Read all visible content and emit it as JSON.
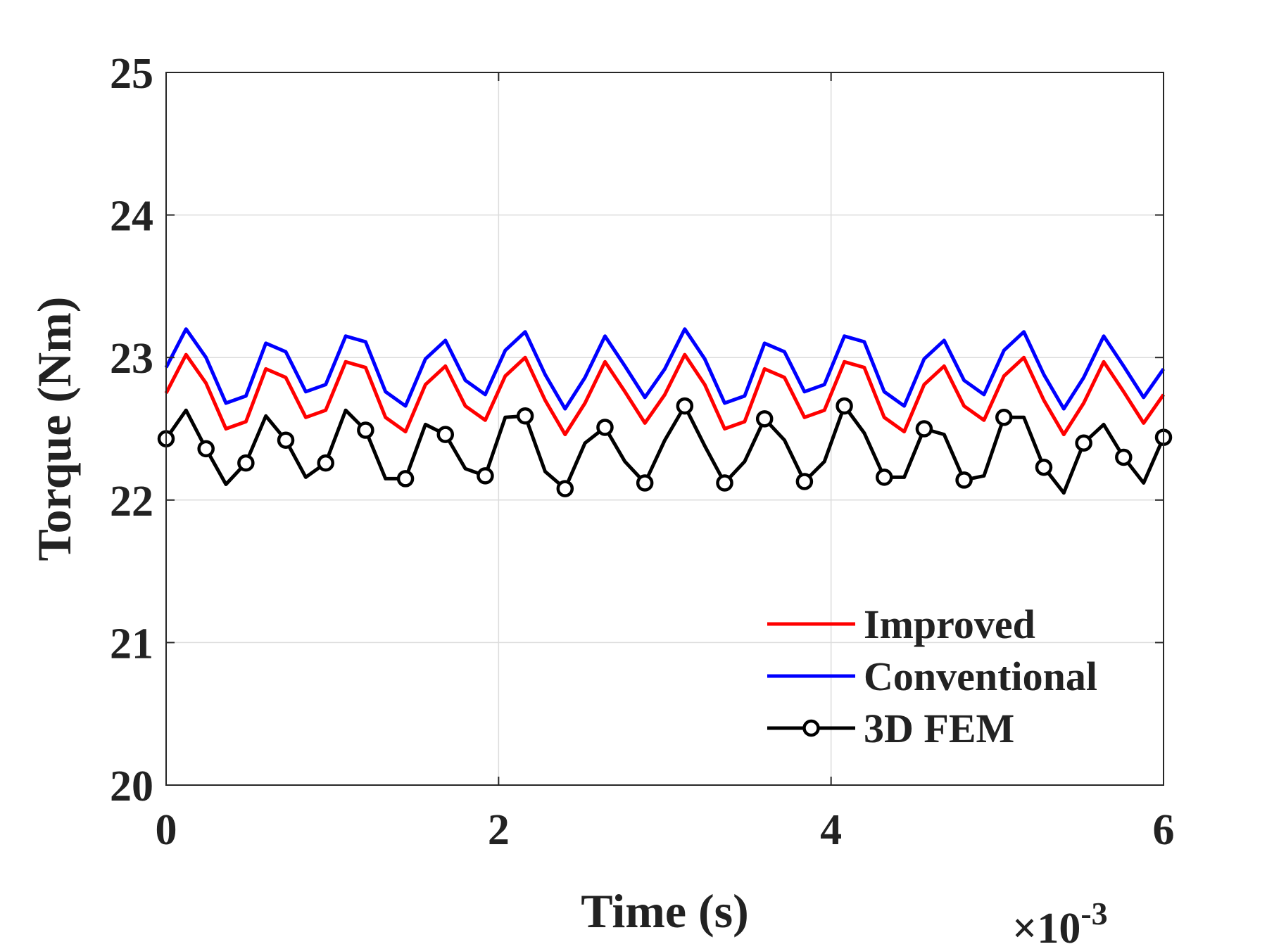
{
  "chart_data": {
    "type": "line",
    "title": "",
    "xlabel": "Time (s)",
    "ylabel": "Torque (Nm)",
    "x_exponent_label": {
      "base": "×10",
      "exponent": "-3"
    },
    "xlim": [
      0,
      6
    ],
    "ylim": [
      20,
      25
    ],
    "xticks": [
      "0",
      "2",
      "4",
      "6"
    ],
    "yticks": [
      "20",
      "21",
      "22",
      "23",
      "24",
      "25"
    ],
    "grid": true,
    "legend_position": "bottom-right",
    "series": [
      {
        "name": "Improved",
        "color": "#ff0000",
        "marker": "none",
        "x": [
          0,
          0.12,
          0.24,
          0.36,
          0.48,
          0.6,
          0.72,
          0.84,
          0.96,
          1.08,
          1.2,
          1.32,
          1.44,
          1.56,
          1.68,
          1.8,
          1.92,
          2.04,
          2.16,
          2.28,
          2.4,
          2.52,
          2.64,
          2.76,
          2.88,
          3.0,
          3.12,
          3.24,
          3.36,
          3.48,
          3.6,
          3.72,
          3.84,
          3.96,
          4.08,
          4.2,
          4.32,
          4.44,
          4.56,
          4.68,
          4.8,
          4.92,
          5.04,
          5.16,
          5.28,
          5.4,
          5.52,
          5.64,
          5.76,
          5.88,
          6.0
        ],
        "y": [
          22.75,
          23.02,
          22.82,
          22.5,
          22.55,
          22.92,
          22.86,
          22.58,
          22.63,
          22.97,
          22.93,
          22.58,
          22.48,
          22.81,
          22.94,
          22.66,
          22.56,
          22.87,
          23.0,
          22.7,
          22.46,
          22.68,
          22.97,
          22.76,
          22.54,
          22.74,
          23.02,
          22.81,
          22.5,
          22.55,
          22.92,
          22.86,
          22.58,
          22.63,
          22.97,
          22.93,
          22.58,
          22.48,
          22.81,
          22.94,
          22.66,
          22.56,
          22.87,
          23.0,
          22.7,
          22.46,
          22.68,
          22.97,
          22.76,
          22.54,
          22.74
        ]
      },
      {
        "name": "Conventional",
        "color": "#0000ff",
        "marker": "none",
        "x": [
          0,
          0.12,
          0.24,
          0.36,
          0.48,
          0.6,
          0.72,
          0.84,
          0.96,
          1.08,
          1.2,
          1.32,
          1.44,
          1.56,
          1.68,
          1.8,
          1.92,
          2.04,
          2.16,
          2.28,
          2.4,
          2.52,
          2.64,
          2.76,
          2.88,
          3.0,
          3.12,
          3.24,
          3.36,
          3.48,
          3.6,
          3.72,
          3.84,
          3.96,
          4.08,
          4.2,
          4.32,
          4.44,
          4.56,
          4.68,
          4.8,
          4.92,
          5.04,
          5.16,
          5.28,
          5.4,
          5.52,
          5.64,
          5.76,
          5.88,
          6.0
        ],
        "y": [
          22.93,
          23.2,
          23.0,
          22.68,
          22.73,
          23.1,
          23.04,
          22.76,
          22.81,
          23.15,
          23.11,
          22.76,
          22.66,
          22.99,
          23.12,
          22.84,
          22.74,
          23.05,
          23.18,
          22.88,
          22.64,
          22.86,
          23.15,
          22.94,
          22.72,
          22.92,
          23.2,
          22.99,
          22.68,
          22.73,
          23.1,
          23.04,
          22.76,
          22.81,
          23.15,
          23.11,
          22.76,
          22.66,
          22.99,
          23.12,
          22.84,
          22.74,
          23.05,
          23.18,
          22.88,
          22.64,
          22.86,
          23.15,
          22.94,
          22.72,
          22.92
        ]
      },
      {
        "name": "3D FEM",
        "color": "#000000",
        "marker": "circle",
        "x": [
          0,
          0.12,
          0.24,
          0.36,
          0.48,
          0.6,
          0.72,
          0.84,
          0.96,
          1.08,
          1.2,
          1.32,
          1.44,
          1.56,
          1.68,
          1.8,
          1.92,
          2.04,
          2.16,
          2.28,
          2.4,
          2.52,
          2.64,
          2.76,
          2.88,
          3.0,
          3.12,
          3.24,
          3.36,
          3.48,
          3.6,
          3.72,
          3.84,
          3.96,
          4.08,
          4.2,
          4.32,
          4.44,
          4.56,
          4.68,
          4.8,
          4.92,
          5.04,
          5.16,
          5.28,
          5.4,
          5.52,
          5.64,
          5.76,
          5.88,
          6.0
        ],
        "y": [
          22.43,
          22.63,
          22.36,
          22.11,
          22.26,
          22.59,
          22.42,
          22.16,
          22.26,
          22.63,
          22.49,
          22.15,
          22.15,
          22.53,
          22.46,
          22.22,
          22.17,
          22.58,
          22.59,
          22.2,
          22.08,
          22.4,
          22.51,
          22.27,
          22.12,
          22.42,
          22.66,
          22.38,
          22.12,
          22.27,
          22.57,
          22.42,
          22.13,
          22.27,
          22.66,
          22.47,
          22.16,
          22.16,
          22.5,
          22.46,
          22.14,
          22.17,
          22.58,
          22.58,
          22.23,
          22.05,
          22.4,
          22.53,
          22.3,
          22.12,
          22.44
        ]
      }
    ]
  }
}
